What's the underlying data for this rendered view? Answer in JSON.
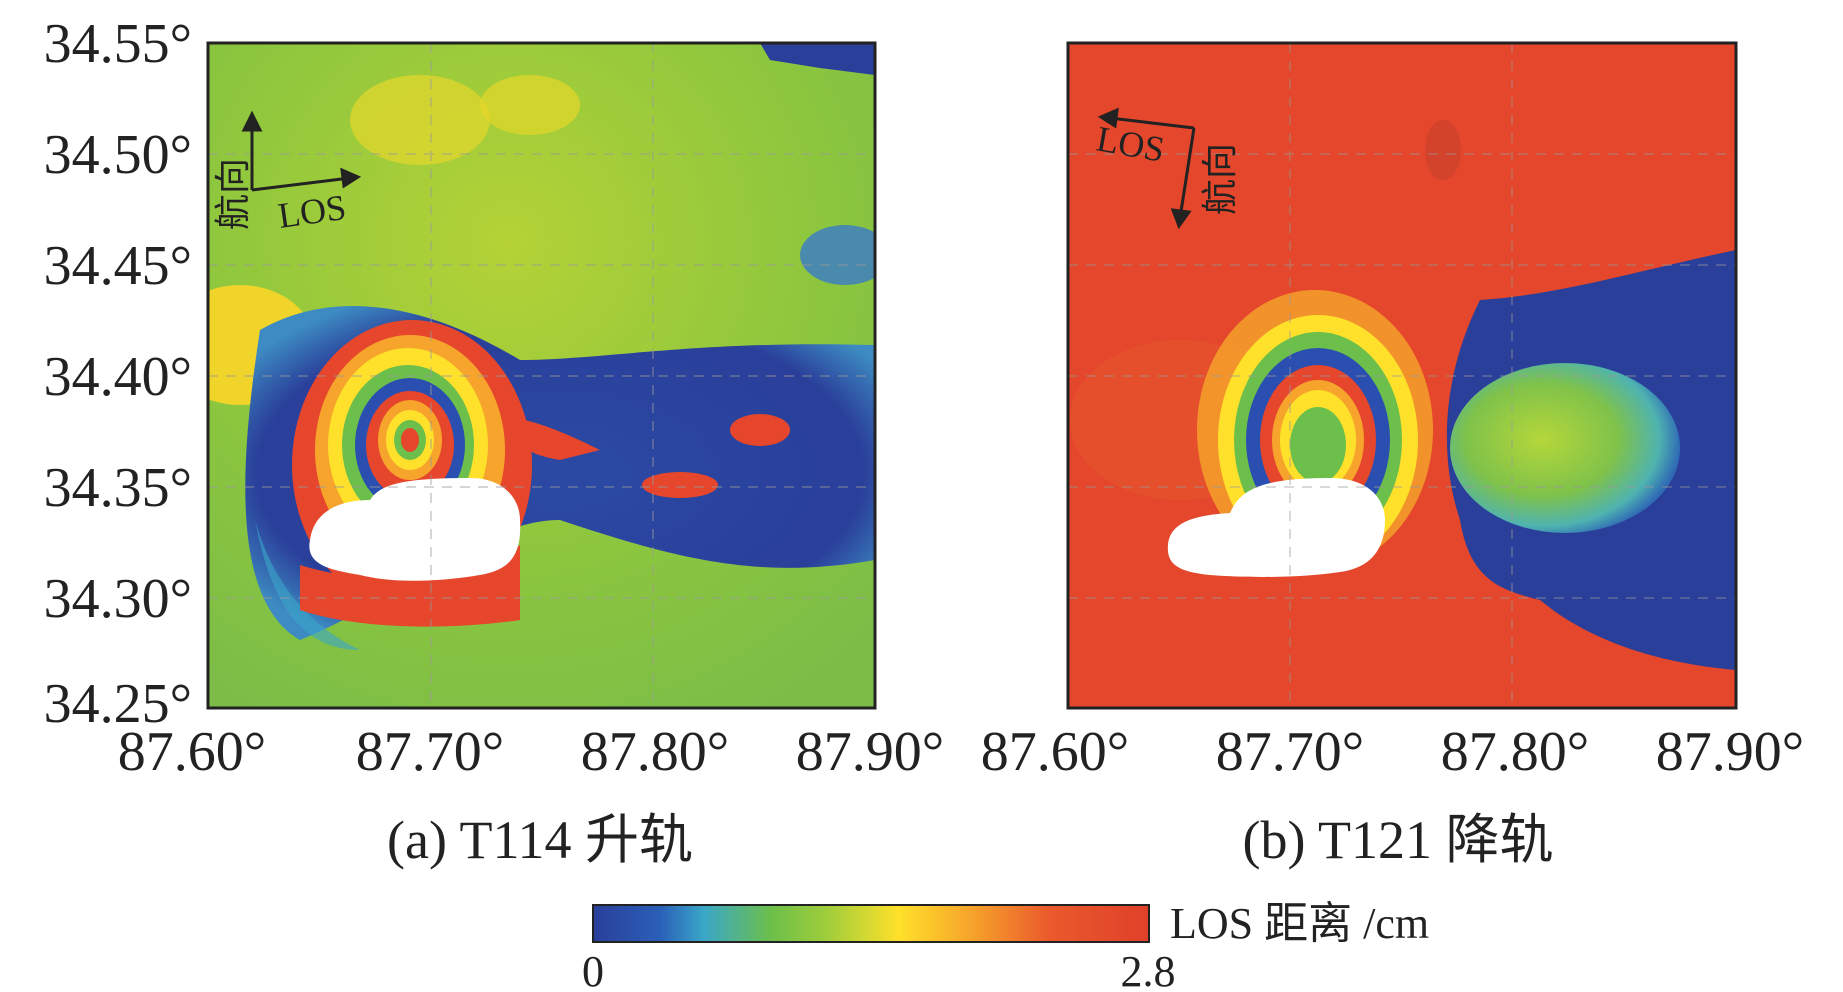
{
  "panels": [
    {
      "caption": "(a) T114 升轨",
      "y_ticks": [
        "34.55°",
        "34.50°",
        "34.45°",
        "34.40°",
        "34.35°",
        "34.30°",
        "34.25°"
      ],
      "x_ticks": [
        "87.60°",
        "87.70°",
        "87.80°",
        "87.90°"
      ],
      "arrow_labels": {
        "azimuth": "航向",
        "los": "LOS"
      }
    },
    {
      "caption": "(b) T121 降轨",
      "x_ticks": [
        "87.60°",
        "87.70°",
        "87.80°",
        "87.90°"
      ],
      "arrow_labels": {
        "azimuth": "航向",
        "los": "LOS"
      }
    }
  ],
  "colorbar": {
    "title": "LOS 距离 /cm",
    "min_label": "0",
    "max_label": "2.8",
    "colors": [
      "#2a3f9a",
      "#2a5fb8",
      "#3aa7c8",
      "#6cbf4a",
      "#9fcd3c",
      "#ffe02a",
      "#f6a42b",
      "#ea5a2c",
      "#e0402a"
    ]
  }
}
